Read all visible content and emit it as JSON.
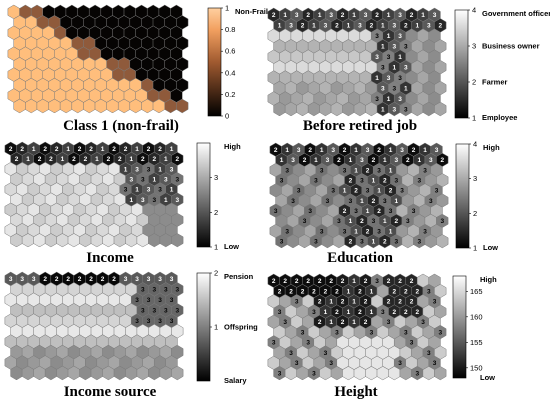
{
  "panels": [
    {
      "id": "class1",
      "title": "Class 1 (non-frail)",
      "colormap": "copper",
      "show_numbers": false,
      "colorbar": {
        "ticks": [
          {
            "v": 1,
            "label": "1"
          },
          {
            "v": 0.8,
            "label": "0.8"
          },
          {
            "v": 0.6,
            "label": "0.6"
          },
          {
            "v": 0.4,
            "label": "0.4"
          },
          {
            "v": 0.2,
            "label": "0.2"
          },
          {
            "v": 0,
            "label": "0"
          }
        ],
        "range": [
          0,
          1
        ],
        "side_labels": [
          {
            "v": 1,
            "label": "Non-Frail"
          }
        ]
      }
    },
    {
      "id": "job",
      "title": "Before retired job",
      "colormap": "gray",
      "show_numbers": true,
      "colorbar": {
        "ticks": [
          {
            "v": 4,
            "label": "4"
          },
          {
            "v": 3,
            "label": "3"
          },
          {
            "v": 2,
            "label": "2"
          },
          {
            "v": 1,
            "label": "1"
          }
        ],
        "range": [
          1,
          4
        ],
        "side_labels": [
          {
            "v": 4,
            "label": "Government officer"
          },
          {
            "v": 3,
            "label": "Business owner"
          },
          {
            "v": 2,
            "label": "Farmer"
          },
          {
            "v": 1,
            "label": "Employee"
          }
        ]
      }
    },
    {
      "id": "income",
      "title": "Income",
      "colormap": "gray",
      "show_numbers": true,
      "colorbar": {
        "ticks": [
          {
            "v": 3,
            "label": "3"
          },
          {
            "v": 2,
            "label": "2"
          },
          {
            "v": 1,
            "label": "1"
          }
        ],
        "range": [
          1,
          4
        ],
        "side_labels": [
          {
            "v": 4,
            "label": "High"
          },
          {
            "v": 1,
            "label": "Low"
          }
        ]
      }
    },
    {
      "id": "education",
      "title": "Education",
      "colormap": "gray",
      "show_numbers": true,
      "colorbar": {
        "ticks": [
          {
            "v": 4,
            "label": "4"
          },
          {
            "v": 3,
            "label": "3"
          },
          {
            "v": 2,
            "label": "2"
          },
          {
            "v": 1,
            "label": "1"
          }
        ],
        "range": [
          1,
          4
        ],
        "side_labels": [
          {
            "v": 4,
            "label": "High"
          },
          {
            "v": 1,
            "label": "Low"
          }
        ]
      }
    },
    {
      "id": "income_source",
      "title": "Income source",
      "colormap": "gray",
      "show_numbers": true,
      "colorbar": {
        "ticks": [
          {
            "v": 2,
            "label": "2"
          },
          {
            "v": 1,
            "label": "1"
          }
        ],
        "range": [
          0,
          2
        ],
        "side_labels": [
          {
            "v": 2,
            "label": "Pension"
          },
          {
            "v": 1,
            "label": "Offspring"
          },
          {
            "v": 0,
            "label": "Salary"
          }
        ]
      }
    },
    {
      "id": "height",
      "title": "Height",
      "colormap": "gray",
      "show_numbers": true,
      "colorbar": {
        "ticks": [
          {
            "v": 165,
            "label": "165"
          },
          {
            "v": 160,
            "label": "160"
          },
          {
            "v": 155,
            "label": "155"
          },
          {
            "v": 150,
            "label": "150"
          }
        ],
        "range": [
          148,
          168
        ],
        "side_labels": [
          {
            "v": 168,
            "label": "High"
          },
          {
            "v": 148,
            "label": "Low"
          }
        ]
      }
    }
  ]
}
